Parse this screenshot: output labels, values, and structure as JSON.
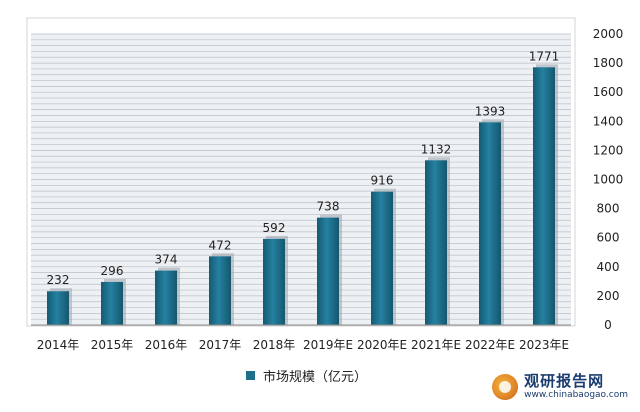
{
  "chart_data": {
    "type": "bar",
    "categories": [
      "2014年",
      "2015年",
      "2016年",
      "2017年",
      "2018年",
      "2019年E",
      "2020年E",
      "2021年E",
      "2022年E",
      "2023年E"
    ],
    "series": [
      {
        "name": "市场规模（亿元）",
        "values": [
          232,
          296,
          374,
          472,
          592,
          738,
          916,
          1132,
          1393,
          1771
        ],
        "color": "#1f6f8b"
      }
    ],
    "yticks": [
      0,
      200,
      400,
      600,
      800,
      1000,
      1200,
      1400,
      1600,
      1800,
      2000
    ],
    "ylim": [
      0,
      2000
    ],
    "y_axis_position": "right",
    "grid": true,
    "legend_position": "bottom"
  },
  "watermark": {
    "name": "观研报告网",
    "url": "www.chinabaogao.com"
  }
}
